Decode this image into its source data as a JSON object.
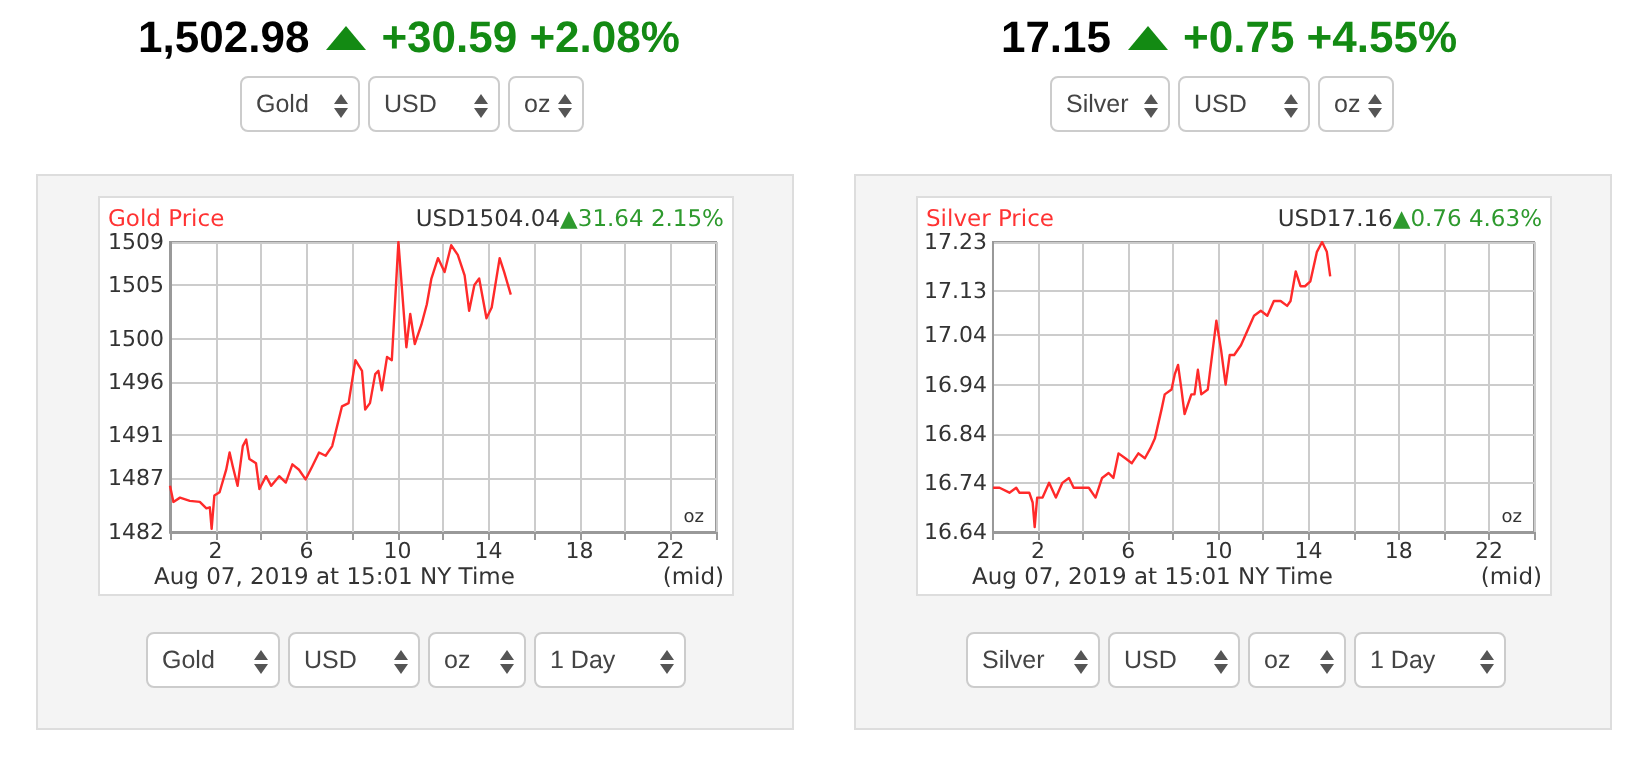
{
  "chart_data": [
    {
      "type": "line",
      "title": "Gold Price",
      "subtitle": "USD1504.04",
      "annotations": [
        "1,502.98",
        "+30.59 +2.08%",
        "Gold",
        "USD",
        "oz",
        "▲31.64 2.15%",
        "oz",
        "Aug 07, 2019 at 15:01 NY Time",
        "(mid)",
        "Gold",
        "USD",
        "oz",
        "1 Day"
      ],
      "x": [
        0,
        0.15,
        0.44,
        0.87,
        1.31,
        1.6,
        1.75,
        1.83,
        1.95,
        2.18,
        2.47,
        2.62,
        2.76,
        2.97,
        3.2,
        3.35,
        3.49,
        3.78,
        3.93,
        4.22,
        4.45,
        4.8,
        5.09,
        5.38,
        5.67,
        5.96,
        6.25,
        6.55,
        6.84,
        7.13,
        7.56,
        7.85,
        8.15,
        8.44,
        8.58,
        8.79,
        9.02,
        9.16,
        9.31,
        9.54,
        9.75,
        10.04,
        10.39,
        10.56,
        10.76,
        11.05,
        11.29,
        11.49,
        11.78,
        12.07,
        12.36,
        12.65,
        12.95,
        13.15,
        13.38,
        13.59,
        13.91,
        14.14,
        14.49,
        14.69,
        14.98
      ],
      "series": [
        {
          "color": "#ff2a2a",
          "values": [
            1486.3,
            1484.8,
            1485.2,
            1484.9,
            1484.8,
            1484.2,
            1484.3,
            1482.3,
            1485.4,
            1485.7,
            1487.8,
            1489.4,
            1488.1,
            1486.3,
            1490.0,
            1490.6,
            1488.8,
            1488.4,
            1486.0,
            1487.2,
            1486.3,
            1487.2,
            1486.6,
            1488.3,
            1487.8,
            1486.9,
            1488.1,
            1489.4,
            1489.1,
            1490.0,
            1493.7,
            1494.0,
            1498.0,
            1497.0,
            1493.4,
            1494.0,
            1496.7,
            1497.0,
            1495.2,
            1498.3,
            1498.0,
            1509.0,
            1499.2,
            1502.3,
            1499.5,
            1501.3,
            1503.2,
            1505.6,
            1507.5,
            1506.2,
            1508.7,
            1507.8,
            1505.9,
            1502.6,
            1505.0,
            1505.6,
            1501.9,
            1502.9,
            1507.5,
            1506.2,
            1504.1
          ]
        }
      ],
      "xlim": [
        0,
        24
      ],
      "xticks": [
        {
          "value": 0,
          "label": null
        },
        2,
        {
          "value": 4,
          "label": null
        },
        6,
        {
          "value": 8,
          "label": null
        },
        10,
        {
          "value": 12,
          "label": null
        },
        14,
        {
          "value": 16,
          "label": null
        },
        18,
        {
          "value": 20,
          "label": null
        },
        22,
        {
          "value": 24,
          "label": null
        }
      ],
      "ylim": [
        1482,
        1509
      ],
      "yticks": [
        1482,
        1487,
        1491,
        1496,
        1500,
        1505,
        1509
      ],
      "grid": true,
      "marker": "none",
      "line_style": "solid"
    },
    {
      "type": "line",
      "title": "Silver Price",
      "subtitle": "USD17.16",
      "annotations": [
        "17.15",
        "+0.75 +4.55%",
        "Silver",
        "USD",
        "oz",
        "▲0.76 4.63%",
        "oz",
        "Aug 07, 2019 at 15:01 NY Time",
        "(mid)",
        "Silver",
        "USD",
        "oz",
        "1 Day"
      ],
      "x": [
        0,
        0.29,
        0.73,
        1.03,
        1.17,
        1.61,
        1.76,
        1.85,
        1.96,
        2.2,
        2.49,
        2.79,
        3.08,
        3.37,
        3.58,
        3.96,
        4.25,
        4.55,
        4.84,
        5.13,
        5.34,
        5.57,
        5.87,
        6.16,
        6.45,
        6.74,
        6.98,
        7.18,
        7.48,
        7.62,
        7.92,
        8.06,
        8.21,
        8.36,
        8.5,
        8.8,
        8.94,
        9.09,
        9.24,
        9.53,
        9.91,
        10.12,
        10.32,
        10.5,
        10.7,
        11,
        11.29,
        11.58,
        11.88,
        12.17,
        12.46,
        12.76,
        13.05,
        13.2,
        13.43,
        13.64,
        13.84,
        14.08,
        14.37,
        14.6,
        14.81,
        14.96
      ],
      "series": [
        {
          "color": "#ff2a2a",
          "values": [
            16.73,
            16.73,
            16.72,
            16.73,
            16.72,
            16.72,
            16.7,
            16.65,
            16.71,
            16.71,
            16.74,
            16.71,
            16.74,
            16.75,
            16.73,
            16.73,
            16.73,
            16.71,
            16.75,
            16.76,
            16.75,
            16.8,
            16.79,
            16.78,
            16.8,
            16.79,
            16.81,
            16.83,
            16.89,
            16.92,
            16.93,
            16.96,
            16.98,
            16.93,
            16.88,
            16.92,
            16.92,
            16.97,
            16.92,
            16.93,
            17.07,
            17.01,
            16.94,
            17.0,
            17.0,
            17.02,
            17.05,
            17.08,
            17.09,
            17.08,
            17.11,
            17.11,
            17.1,
            17.11,
            17.17,
            17.14,
            17.14,
            17.15,
            17.21,
            17.23,
            17.21,
            17.16
          ]
        }
      ],
      "xlim": [
        0,
        24
      ],
      "xticks": [
        {
          "value": 0,
          "label": null
        },
        2,
        {
          "value": 4,
          "label": null
        },
        6,
        {
          "value": 8,
          "label": null
        },
        10,
        {
          "value": 12,
          "label": null
        },
        14,
        {
          "value": 16,
          "label": null
        },
        18,
        {
          "value": 20,
          "label": null
        },
        22,
        {
          "value": 24,
          "label": null
        }
      ],
      "ylim": [
        16.64,
        17.23
      ],
      "yticks": [
        16.64,
        16.74,
        16.84,
        16.94,
        17.04,
        17.13,
        17.23
      ],
      "grid": true,
      "marker": "none",
      "line_style": "solid"
    }
  ]
}
